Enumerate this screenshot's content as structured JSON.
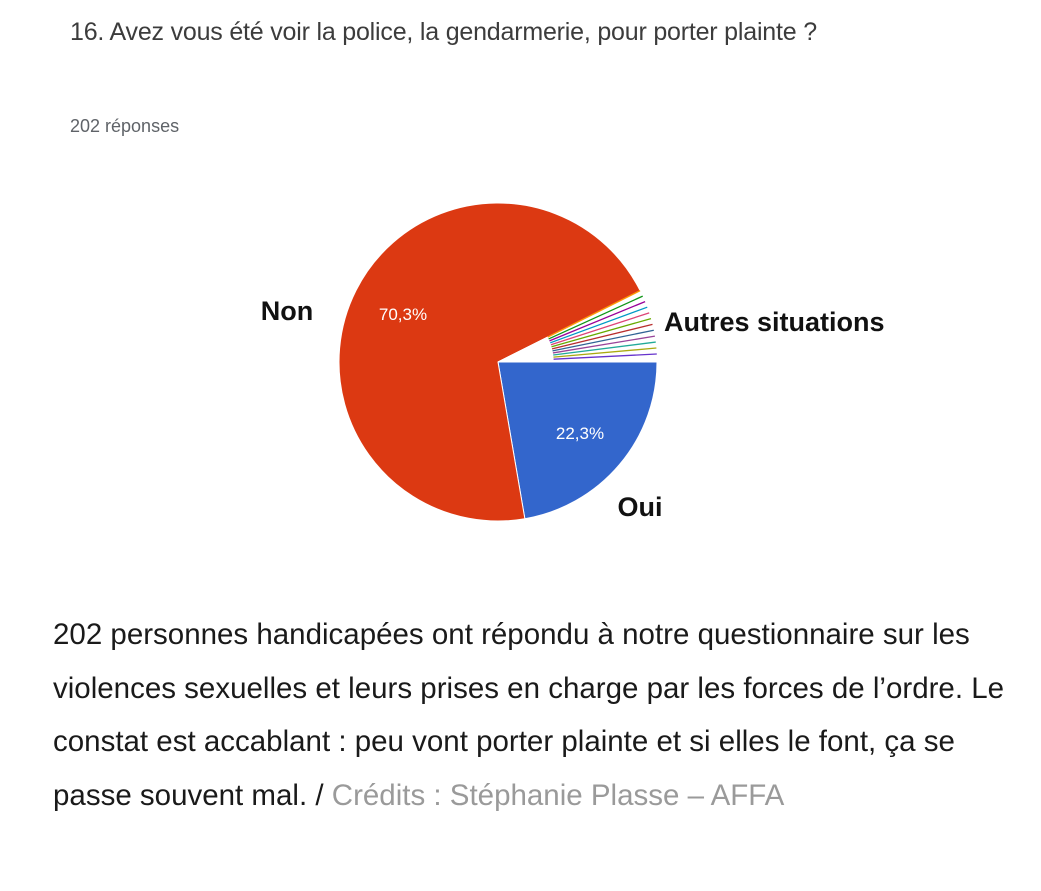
{
  "question": {
    "title": "16. Avez vous été voir la police, la gendarmerie, pour porter plainte ?",
    "response_count": "202 réponses"
  },
  "chart_data": {
    "type": "pie",
    "slices": [
      {
        "label": "Non",
        "value": 70.3,
        "display": "70,3%",
        "color": "#dc3912"
      },
      {
        "label": "Oui",
        "value": 22.3,
        "display": "22,3%",
        "color": "#3366cc"
      },
      {
        "label": "Autres situations",
        "value": 7.4,
        "display": "",
        "color": "#ffffff",
        "sub_slices": [
          {
            "value": 0.6,
            "color": "#ff9900"
          },
          {
            "value": 0.6,
            "color": "#109618"
          },
          {
            "value": 0.6,
            "color": "#990099"
          },
          {
            "value": 0.6,
            "color": "#0099c6"
          },
          {
            "value": 0.6,
            "color": "#dd4477"
          },
          {
            "value": 0.6,
            "color": "#66aa00"
          },
          {
            "value": 0.6,
            "color": "#b82e2e"
          },
          {
            "value": 0.6,
            "color": "#316395"
          },
          {
            "value": 0.6,
            "color": "#994499"
          },
          {
            "value": 0.6,
            "color": "#22aa99"
          },
          {
            "value": 0.6,
            "color": "#aaaa11"
          },
          {
            "value": 0.8,
            "color": "#6633cc"
          }
        ]
      }
    ]
  },
  "caption": {
    "text": "202 personnes handicapées ont répondu à notre questionnaire sur les violences sexuelles et leurs prises en charge par les forces de l’ordre. Le constat est accablant : peu vont porter plainte et si elles le font, ça se passe souvent mal. / ",
    "credits": "Crédits : Stéphanie Plasse – AFFA"
  }
}
